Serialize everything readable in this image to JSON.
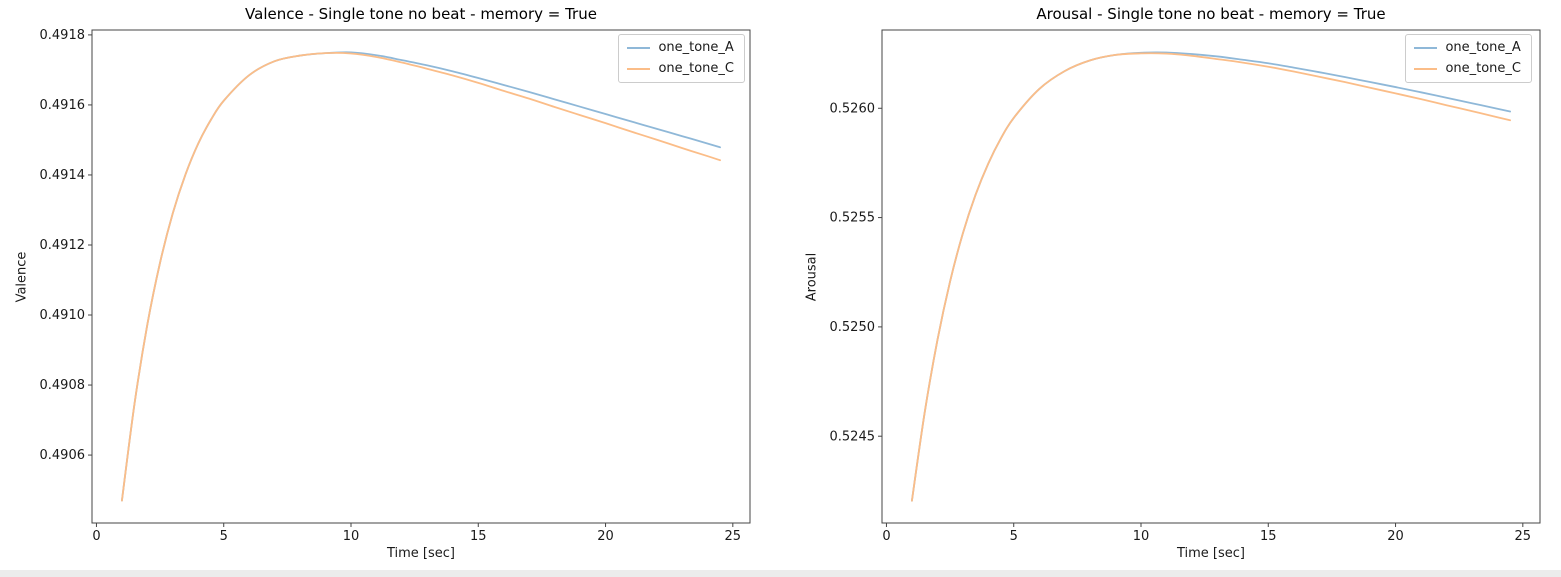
{
  "figure": {
    "background_color": "#ffffff",
    "text_color": "#000000",
    "spine_color": "#444444"
  },
  "chart_data": [
    {
      "type": "line",
      "title": "Valence - Single tone no beat - memory = True",
      "xlabel": "Time [sec]",
      "ylabel": "Valence",
      "grid": false,
      "legend_position": "upper right",
      "xlim": [
        -0.175,
        25.675
      ],
      "ylim": [
        0.490406,
        0.491814
      ],
      "x_ticks": {
        "values": [
          0,
          5,
          10,
          15,
          20,
          25
        ],
        "labels": [
          "0",
          "5",
          "10",
          "15",
          "20",
          "25"
        ]
      },
      "y_ticks": {
        "values": [
          0.4906,
          0.4908,
          0.491,
          0.4912,
          0.4914,
          0.4916,
          0.4918
        ],
        "labels": [
          "0.4906",
          "0.4908",
          "0.4910",
          "0.4912",
          "0.4914",
          "0.4916",
          "0.4918"
        ]
      },
      "x": [
        1,
        1.5,
        2,
        2.5,
        3,
        3.5,
        4,
        4.5,
        5,
        6,
        7,
        8,
        9,
        10,
        11,
        12,
        13,
        14,
        15,
        16,
        17,
        18,
        19,
        20,
        21,
        22,
        23,
        24,
        24.5
      ],
      "series": [
        {
          "name": "one_tone_A",
          "color": "#8FB8D8",
          "values": [
            0.49047,
            0.490749,
            0.490973,
            0.49115,
            0.491291,
            0.491402,
            0.49149,
            0.491558,
            0.491612,
            0.491685,
            0.491725,
            0.491741,
            0.491748,
            0.49175,
            0.491742,
            0.491728,
            0.491713,
            0.491696,
            0.491677,
            0.491657,
            0.491637,
            0.491616,
            0.491595,
            0.491574,
            0.491553,
            0.491532,
            0.491511,
            0.49149,
            0.491479
          ]
        },
        {
          "name": "one_tone_C",
          "color": "#FBBD88",
          "values": [
            0.49047,
            0.490749,
            0.490973,
            0.49115,
            0.491291,
            0.491402,
            0.49149,
            0.491558,
            0.491612,
            0.491685,
            0.491725,
            0.491741,
            0.491748,
            0.491747,
            0.491737,
            0.491721,
            0.491703,
            0.491684,
            0.491663,
            0.49164,
            0.491618,
            0.491594,
            0.491571,
            0.491548,
            0.491524,
            0.491501,
            0.491477,
            0.491454,
            0.491442
          ]
        }
      ]
    },
    {
      "type": "line",
      "title": "Arousal - Single tone no beat - memory = True",
      "xlabel": "Time [sec]",
      "ylabel": "Arousal",
      "grid": false,
      "legend_position": "upper right",
      "xlim": [
        -0.175,
        25.675
      ],
      "ylim": [
        0.524103,
        0.526358
      ],
      "x_ticks": {
        "values": [
          0,
          5,
          10,
          15,
          20,
          25
        ],
        "labels": [
          "0",
          "5",
          "10",
          "15",
          "20",
          "25"
        ]
      },
      "y_ticks": {
        "values": [
          0.5245,
          0.525,
          0.5255,
          0.526
        ],
        "labels": [
          "0.5245",
          "0.5250",
          "0.5255",
          "0.5260"
        ]
      },
      "x": [
        1,
        1.5,
        2,
        2.5,
        3,
        3.5,
        4,
        4.5,
        5,
        6,
        7,
        8,
        9,
        10,
        11,
        12,
        13,
        14,
        15,
        16,
        17,
        18,
        19,
        20,
        21,
        22,
        23,
        24,
        24.5
      ],
      "series": [
        {
          "name": "one_tone_A",
          "color": "#8FB8D8",
          "values": [
            0.524205,
            0.524607,
            0.524938,
            0.525208,
            0.525427,
            0.525604,
            0.525747,
            0.525863,
            0.525956,
            0.526088,
            0.52617,
            0.526219,
            0.526244,
            0.526254,
            0.526255,
            0.526248,
            0.526237,
            0.526222,
            0.526206,
            0.526186,
            0.526165,
            0.526143,
            0.52612,
            0.526097,
            0.526073,
            0.526048,
            0.526023,
            0.525998,
            0.525985
          ]
        },
        {
          "name": "one_tone_C",
          "color": "#FBBD88",
          "values": [
            0.524205,
            0.524607,
            0.524938,
            0.525208,
            0.525427,
            0.525604,
            0.525747,
            0.525863,
            0.525956,
            0.526088,
            0.52617,
            0.526219,
            0.526244,
            0.526251,
            0.52625,
            0.52624,
            0.526225,
            0.526209,
            0.52619,
            0.526168,
            0.526144,
            0.52612,
            0.526094,
            0.526068,
            0.526042,
            0.526014,
            0.525987,
            0.525959,
            0.525945
          ]
        }
      ]
    }
  ]
}
